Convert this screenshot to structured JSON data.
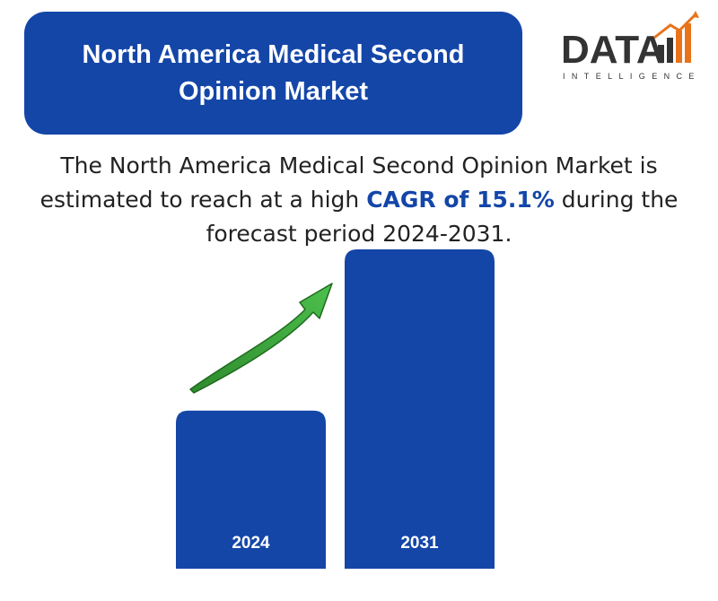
{
  "header": {
    "title": "North America Medical Second Opinion Market"
  },
  "logo": {
    "wordmark": "DATA",
    "tagline": "INTELLIGENCE",
    "colors": {
      "dark": "#333333",
      "accent": "#e8731a"
    }
  },
  "headline": {
    "part1": "The North America Medical Second Opinion Market is estimated to reach at a high ",
    "highlight": "CAGR of 15.1%",
    "part2": " during the forecast period 2024-2031."
  },
  "colors": {
    "bar": "#1446a8",
    "arrow": "#3aa03a",
    "title_bg": "#1446a8"
  },
  "chart_data": {
    "type": "bar",
    "categories": [
      "2024",
      "2031"
    ],
    "values": [
      1,
      2.02
    ],
    "title": "",
    "xlabel": "",
    "ylabel": "",
    "ylim": [
      0,
      2.02
    ],
    "annotations": [
      "growth-arrow"
    ]
  }
}
